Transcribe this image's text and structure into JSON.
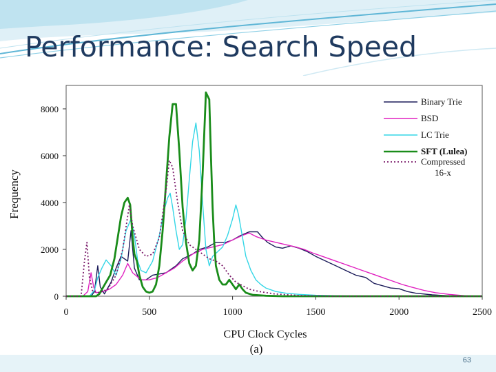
{
  "slide": {
    "title": "Performance: Search Speed",
    "page_number": "63"
  },
  "colors": {
    "title": "#1f3a5f",
    "deco_wave": "#5fb6d6",
    "footer": "#e6f3f8"
  },
  "chart_data": {
    "type": "line",
    "xlabel": "CPU Clock Cycles",
    "ylabel": "Frequency",
    "caption": "(a)",
    "xlim": [
      0,
      2500
    ],
    "ylim": [
      0,
      9000
    ],
    "x_ticks": [
      0,
      500,
      1000,
      1500,
      2000,
      2500
    ],
    "y_ticks": [
      0,
      2000,
      4000,
      6000,
      8000
    ],
    "legend_placement": "top-right",
    "grid": false,
    "series": [
      {
        "name": "Binary Trie",
        "color": "#1c1c5a",
        "dash": "solid",
        "width": 1.4,
        "points": [
          [
            0,
            0
          ],
          [
            150,
            0
          ],
          [
            170,
            200
          ],
          [
            190,
            1300
          ],
          [
            205,
            400
          ],
          [
            230,
            100
          ],
          [
            270,
            600
          ],
          [
            300,
            1200
          ],
          [
            330,
            1700
          ],
          [
            370,
            1500
          ],
          [
            390,
            2800
          ],
          [
            410,
            1200
          ],
          [
            440,
            700
          ],
          [
            480,
            700
          ],
          [
            520,
            900
          ],
          [
            600,
            1000
          ],
          [
            660,
            1300
          ],
          [
            700,
            1600
          ],
          [
            760,
            1800
          ],
          [
            800,
            2000
          ],
          [
            850,
            2100
          ],
          [
            900,
            2300
          ],
          [
            960,
            2300
          ],
          [
            1000,
            2400
          ],
          [
            1050,
            2600
          ],
          [
            1100,
            2750
          ],
          [
            1150,
            2750
          ],
          [
            1180,
            2500
          ],
          [
            1210,
            2300
          ],
          [
            1260,
            2100
          ],
          [
            1300,
            2050
          ],
          [
            1350,
            2150
          ],
          [
            1400,
            2050
          ],
          [
            1450,
            1900
          ],
          [
            1500,
            1700
          ],
          [
            1560,
            1500
          ],
          [
            1620,
            1300
          ],
          [
            1680,
            1100
          ],
          [
            1740,
            900
          ],
          [
            1800,
            800
          ],
          [
            1850,
            550
          ],
          [
            1900,
            450
          ],
          [
            1950,
            350
          ],
          [
            2000,
            320
          ],
          [
            2050,
            200
          ],
          [
            2100,
            130
          ],
          [
            2200,
            60
          ],
          [
            2300,
            20
          ],
          [
            2500,
            0
          ]
        ]
      },
      {
        "name": "BSD",
        "color": "#e020c0",
        "dash": "solid",
        "width": 1.4,
        "points": [
          [
            0,
            0
          ],
          [
            100,
            0
          ],
          [
            130,
            200
          ],
          [
            150,
            1000
          ],
          [
            165,
            400
          ],
          [
            180,
            150
          ],
          [
            220,
            200
          ],
          [
            260,
            300
          ],
          [
            300,
            500
          ],
          [
            340,
            900
          ],
          [
            370,
            1400
          ],
          [
            400,
            1000
          ],
          [
            450,
            700
          ],
          [
            500,
            700
          ],
          [
            550,
            800
          ],
          [
            600,
            1000
          ],
          [
            650,
            1200
          ],
          [
            700,
            1500
          ],
          [
            760,
            1800
          ],
          [
            820,
            2000
          ],
          [
            880,
            2100
          ],
          [
            940,
            2200
          ],
          [
            1000,
            2400
          ],
          [
            1060,
            2600
          ],
          [
            1100,
            2700
          ],
          [
            1140,
            2550
          ],
          [
            1200,
            2400
          ],
          [
            1260,
            2300
          ],
          [
            1320,
            2200
          ],
          [
            1380,
            2100
          ],
          [
            1430,
            2000
          ],
          [
            1480,
            1850
          ],
          [
            1540,
            1700
          ],
          [
            1600,
            1550
          ],
          [
            1660,
            1400
          ],
          [
            1720,
            1250
          ],
          [
            1780,
            1100
          ],
          [
            1840,
            950
          ],
          [
            1900,
            800
          ],
          [
            1960,
            650
          ],
          [
            2020,
            500
          ],
          [
            2080,
            380
          ],
          [
            2150,
            250
          ],
          [
            2220,
            150
          ],
          [
            2300,
            80
          ],
          [
            2400,
            20
          ],
          [
            2500,
            0
          ]
        ]
      },
      {
        "name": "LC Trie",
        "color": "#33d6e6",
        "dash": "solid",
        "width": 1.4,
        "points": [
          [
            0,
            0
          ],
          [
            140,
            0
          ],
          [
            170,
            250
          ],
          [
            190,
            800
          ],
          [
            215,
            1200
          ],
          [
            240,
            1550
          ],
          [
            270,
            1300
          ],
          [
            300,
            900
          ],
          [
            330,
            1600
          ],
          [
            360,
            2800
          ],
          [
            390,
            3300
          ],
          [
            410,
            2600
          ],
          [
            430,
            1500
          ],
          [
            450,
            1100
          ],
          [
            480,
            1000
          ],
          [
            520,
            1500
          ],
          [
            560,
            2600
          ],
          [
            590,
            3700
          ],
          [
            610,
            4200
          ],
          [
            625,
            4400
          ],
          [
            640,
            3800
          ],
          [
            660,
            2800
          ],
          [
            680,
            2000
          ],
          [
            700,
            2200
          ],
          [
            720,
            3300
          ],
          [
            740,
            5000
          ],
          [
            760,
            6600
          ],
          [
            780,
            7400
          ],
          [
            800,
            6200
          ],
          [
            820,
            4000
          ],
          [
            840,
            2000
          ],
          [
            860,
            1300
          ],
          [
            880,
            1700
          ],
          [
            910,
            1900
          ],
          [
            940,
            2100
          ],
          [
            970,
            2600
          ],
          [
            1000,
            3300
          ],
          [
            1020,
            3900
          ],
          [
            1035,
            3500
          ],
          [
            1060,
            2500
          ],
          [
            1080,
            1700
          ],
          [
            1110,
            1100
          ],
          [
            1140,
            700
          ],
          [
            1170,
            500
          ],
          [
            1200,
            350
          ],
          [
            1260,
            200
          ],
          [
            1320,
            130
          ],
          [
            1400,
            80
          ],
          [
            1500,
            40
          ],
          [
            1650,
            15
          ],
          [
            1800,
            0
          ],
          [
            2500,
            0
          ]
        ]
      },
      {
        "name": "SFT (Lulea)",
        "color": "#1a8c1a",
        "dash": "solid",
        "width": 2.8,
        "points": [
          [
            0,
            0
          ],
          [
            180,
            0
          ],
          [
            200,
            100
          ],
          [
            240,
            600
          ],
          [
            265,
            900
          ],
          [
            290,
            1600
          ],
          [
            310,
            2500
          ],
          [
            330,
            3400
          ],
          [
            350,
            4000
          ],
          [
            370,
            4200
          ],
          [
            385,
            3900
          ],
          [
            400,
            2500
          ],
          [
            410,
            1800
          ],
          [
            425,
            1500
          ],
          [
            440,
            900
          ],
          [
            460,
            400
          ],
          [
            480,
            200
          ],
          [
            500,
            150
          ],
          [
            520,
            200
          ],
          [
            540,
            500
          ],
          [
            560,
            1300
          ],
          [
            580,
            2800
          ],
          [
            600,
            4800
          ],
          [
            620,
            6800
          ],
          [
            640,
            8200
          ],
          [
            660,
            8200
          ],
          [
            680,
            6200
          ],
          [
            700,
            3800
          ],
          [
            720,
            2300
          ],
          [
            740,
            1400
          ],
          [
            760,
            1100
          ],
          [
            780,
            1300
          ],
          [
            800,
            2400
          ],
          [
            820,
            5200
          ],
          [
            840,
            8700
          ],
          [
            860,
            8400
          ],
          [
            870,
            6000
          ],
          [
            880,
            3800
          ],
          [
            890,
            2300
          ],
          [
            900,
            1300
          ],
          [
            920,
            700
          ],
          [
            940,
            500
          ],
          [
            960,
            500
          ],
          [
            980,
            700
          ],
          [
            1000,
            500
          ],
          [
            1020,
            300
          ],
          [
            1040,
            500
          ],
          [
            1060,
            300
          ],
          [
            1080,
            150
          ],
          [
            1120,
            60
          ],
          [
            1200,
            20
          ],
          [
            1300,
            0
          ],
          [
            2500,
            0
          ]
        ]
      },
      {
        "name": "Compressed 16-x",
        "color": "#7a1a6a",
        "dash": "2,3",
        "width": 1.8,
        "points": [
          [
            0,
            0
          ],
          [
            90,
            0
          ],
          [
            110,
            1500
          ],
          [
            125,
            2300
          ],
          [
            140,
            800
          ],
          [
            160,
            200
          ],
          [
            200,
            150
          ],
          [
            250,
            300
          ],
          [
            300,
            900
          ],
          [
            340,
            2000
          ],
          [
            380,
            3900
          ],
          [
            400,
            3000
          ],
          [
            440,
            2000
          ],
          [
            480,
            1700
          ],
          [
            520,
            1800
          ],
          [
            560,
            2500
          ],
          [
            600,
            4500
          ],
          [
            620,
            5800
          ],
          [
            640,
            5500
          ],
          [
            670,
            4000
          ],
          [
            700,
            2800
          ],
          [
            740,
            2200
          ],
          [
            780,
            2000
          ],
          [
            820,
            1800
          ],
          [
            860,
            1600
          ],
          [
            900,
            1500
          ],
          [
            940,
            1300
          ],
          [
            980,
            900
          ],
          [
            1020,
            600
          ],
          [
            1060,
            450
          ],
          [
            1100,
            300
          ],
          [
            1160,
            200
          ],
          [
            1250,
            100
          ],
          [
            1400,
            30
          ],
          [
            1600,
            0
          ],
          [
            2500,
            0
          ]
        ]
      }
    ],
    "legend": [
      {
        "label": "Binary Trie"
      },
      {
        "label": "BSD"
      },
      {
        "label": "LC Trie"
      },
      {
        "label": "SFT (Lulea)"
      },
      {
        "label": "Compressed",
        "label2": "16-x"
      }
    ]
  }
}
